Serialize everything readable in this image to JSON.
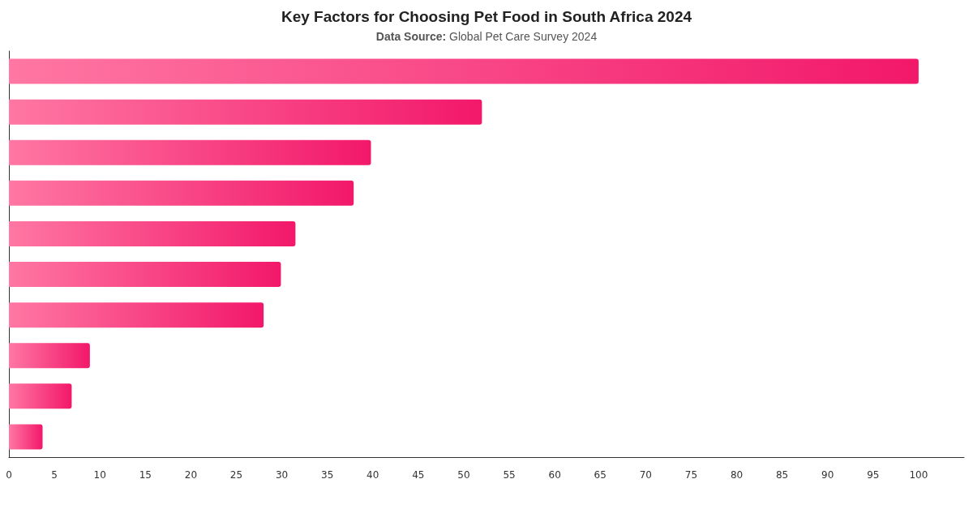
{
  "chart_data": {
    "type": "bar",
    "orientation": "horizontal",
    "title": "Key Factors for Choosing Pet Food in South Africa 2024",
    "subtitle": "Data Source: Global Pet Care Survey 2024",
    "categories": [
      null,
      null,
      null,
      null,
      null,
      null,
      null,
      null,
      null,
      null
    ],
    "values": [
      100,
      52.0,
      39.8,
      37.9,
      31.5,
      29.9,
      28.0,
      8.9,
      6.9,
      3.7
    ],
    "color": "#f2186a",
    "xlim": [
      0,
      105
    ],
    "xticks": [
      0,
      5,
      10,
      15,
      20,
      25,
      30,
      35,
      40,
      45,
      50,
      55,
      60,
      65,
      70,
      75,
      80,
      85,
      90,
      95,
      100
    ],
    "grid": false
  }
}
